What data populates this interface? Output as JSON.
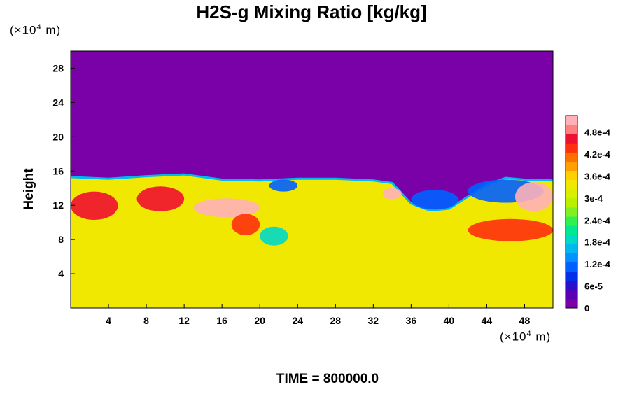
{
  "chart_data": {
    "type": "heatmap",
    "title": "H2S-g Mixing Ratio [kg/kg]",
    "ylabel": "Height",
    "x_unit": {
      "base": "(×10",
      "exp": "4",
      "suffix": " m)"
    },
    "y_unit": {
      "base": "(×10",
      "exp": "4",
      "suffix": " m)"
    },
    "xlim": [
      0,
      51
    ],
    "ylim": [
      0,
      30
    ],
    "x_ticks": [
      "4",
      "8",
      "12",
      "16",
      "20",
      "24",
      "28",
      "32",
      "36",
      "40",
      "44",
      "48"
    ],
    "x_tick_values": [
      4,
      8,
      12,
      16,
      20,
      24,
      28,
      32,
      36,
      40,
      44,
      48
    ],
    "y_ticks": [
      "4",
      "8",
      "12",
      "16",
      "20",
      "24",
      "28"
    ],
    "y_tick_values": [
      4,
      8,
      12,
      16,
      20,
      24,
      28
    ],
    "colorbar": {
      "labels": [
        "0",
        "6e-5",
        "1.2e-4",
        "1.8e-4",
        "2.4e-4",
        "3e-4",
        "3.6e-4",
        "4.2e-4",
        "4.8e-4"
      ],
      "label_values": [
        0,
        6e-05,
        0.00012,
        0.00018,
        0.00024,
        0.0003,
        0.00036,
        0.00042,
        0.00048
      ],
      "colors": [
        "#7a00a8",
        "#5a00b4",
        "#2a10cc",
        "#0030e8",
        "#0060ff",
        "#0090ff",
        "#00b8f0",
        "#00d8c8",
        "#00e890",
        "#30f050",
        "#80f020",
        "#b8f000",
        "#d8f000",
        "#f0e800",
        "#ffd000",
        "#ffa000",
        "#ff7000",
        "#ff3010",
        "#ee1030",
        "#ff8080",
        "#ffb0b8"
      ]
    },
    "regions": {
      "upper_value": 0,
      "lower_value": 0.000335,
      "interface_height": [
        [
          0,
          15.3
        ],
        [
          4,
          15.1
        ],
        [
          8,
          15.4
        ],
        [
          12,
          15.6
        ],
        [
          16,
          15.0
        ],
        [
          20,
          14.9
        ],
        [
          24,
          15.1
        ],
        [
          28,
          15.1
        ],
        [
          32,
          14.9
        ],
        [
          34,
          14.6
        ],
        [
          36,
          12.2
        ],
        [
          38,
          11.4
        ],
        [
          40,
          11.6
        ],
        [
          42,
          13.0
        ],
        [
          44,
          14.4
        ],
        [
          46,
          15.2
        ],
        [
          48,
          15.0
        ],
        [
          51,
          14.9
        ]
      ],
      "highlights": [
        {
          "value": 0.00046,
          "x_range": [
            0,
            5
          ],
          "y_range": [
            10.3,
            13.6
          ]
        },
        {
          "value": 0.00045,
          "x_range": [
            7,
            12
          ],
          "y_range": [
            11.3,
            14.2
          ]
        },
        {
          "value": 0.0005,
          "x_range": [
            13,
            20
          ],
          "y_range": [
            10.6,
            12.8
          ]
        },
        {
          "value": 0.00044,
          "x_range": [
            17,
            20
          ],
          "y_range": [
            8.5,
            11.0
          ]
        },
        {
          "value": 0.0001,
          "x_range": [
            21,
            24
          ],
          "y_range": [
            13.6,
            15.0
          ]
        },
        {
          "value": 0.00019,
          "x_range": [
            20,
            23
          ],
          "y_range": [
            7.3,
            9.5
          ]
        },
        {
          "value": 0.0005,
          "x_range": [
            33,
            35
          ],
          "y_range": [
            12.7,
            14.0
          ]
        },
        {
          "value": 0.0001,
          "x_range": [
            36,
            41
          ],
          "y_range": [
            11.5,
            13.8
          ]
        },
        {
          "value": 0.0001,
          "x_range": [
            42,
            50
          ],
          "y_range": [
            12.3,
            15.0
          ]
        },
        {
          "value": 0.0005,
          "x_range": [
            47,
            51
          ],
          "y_range": [
            11.3,
            14.7
          ]
        },
        {
          "value": 0.00044,
          "x_range": [
            42,
            51
          ],
          "y_range": [
            7.8,
            10.4
          ]
        }
      ]
    },
    "grid": false,
    "legend": "right-colorbar"
  },
  "footer": {
    "time_label": "TIME = 800000.0"
  }
}
